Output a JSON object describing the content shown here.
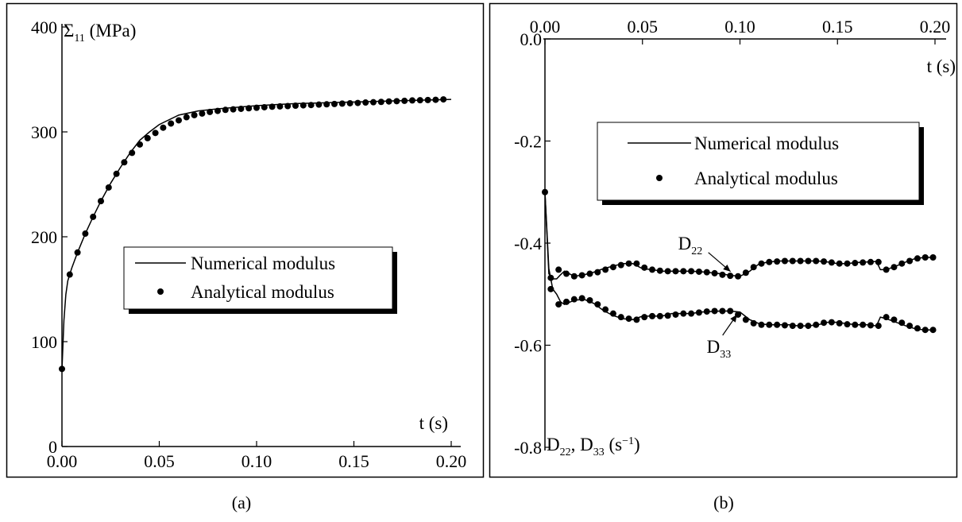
{
  "figure": {
    "captions": [
      "(a)",
      "(b)"
    ]
  },
  "chart_data": [
    {
      "type": "line",
      "panel": "(a)",
      "title": "",
      "xlabel": "t (s)",
      "ylabel": {
        "main": "Σ",
        "sub": "11",
        "rest": " (MPa)"
      },
      "xlim": [
        0,
        0.2
      ],
      "ylim": [
        0,
        400
      ],
      "xticks": [
        "0.00",
        "0.05",
        "0.10",
        "0.15",
        "0.20"
      ],
      "yticks": [
        "0",
        "100",
        "200",
        "300",
        "400"
      ],
      "grid": false,
      "legend": {
        "placement": "center-right",
        "entries": [
          "Numerical modulus",
          "Analytical modulus"
        ]
      },
      "series": [
        {
          "name": "Numerical modulus",
          "style": "line",
          "x": [
            0.0,
            0.001,
            0.002,
            0.003,
            0.005,
            0.008,
            0.012,
            0.016,
            0.02,
            0.025,
            0.03,
            0.035,
            0.04,
            0.045,
            0.05,
            0.06,
            0.07,
            0.08,
            0.09,
            0.1,
            0.11,
            0.12,
            0.13,
            0.14,
            0.15,
            0.16,
            0.17,
            0.18,
            0.19,
            0.2
          ],
          "y": [
            73,
            120,
            145,
            158,
            170,
            185,
            203,
            219,
            234,
            251,
            266,
            280,
            292,
            300,
            307,
            316,
            320,
            322,
            323.5,
            325,
            326,
            327,
            327.5,
            328,
            328.5,
            329,
            329.5,
            330,
            330.5,
            331
          ]
        },
        {
          "name": "Analytical modulus",
          "style": "markers",
          "x": [
            0.0,
            0.004,
            0.008,
            0.012,
            0.016,
            0.02,
            0.024,
            0.028,
            0.032,
            0.036,
            0.04,
            0.044,
            0.048,
            0.052,
            0.056,
            0.06,
            0.064,
            0.068,
            0.072,
            0.076,
            0.08,
            0.084,
            0.088,
            0.092,
            0.096,
            0.1,
            0.104,
            0.108,
            0.112,
            0.116,
            0.12,
            0.124,
            0.128,
            0.132,
            0.136,
            0.14,
            0.144,
            0.148,
            0.152,
            0.156,
            0.16,
            0.164,
            0.168,
            0.172,
            0.176,
            0.18,
            0.184,
            0.188,
            0.192,
            0.196
          ],
          "y": [
            74,
            164,
            185,
            203,
            219,
            234,
            247,
            260,
            271,
            280,
            288,
            294,
            299,
            304,
            308,
            311,
            314,
            316,
            317.5,
            319,
            320,
            321,
            321.5,
            322,
            322.5,
            323,
            323.5,
            324,
            324.3,
            324.6,
            325,
            325.3,
            325.6,
            326,
            326.3,
            326.6,
            327,
            327.3,
            327.6,
            328,
            328.3,
            328.6,
            329,
            329.3,
            329.6,
            330,
            330.2,
            330.4,
            330.6,
            331
          ]
        }
      ]
    },
    {
      "type": "line",
      "panel": "(b)",
      "title": "",
      "xlabel": "t (s)",
      "ylabel": {
        "parts": [
          {
            "t": "D",
            "sub": "22"
          },
          {
            "t": ", D",
            "sub": "33"
          },
          {
            "t": " (s",
            "sup": "−1"
          },
          {
            "t": ")"
          }
        ]
      },
      "xlim": [
        0,
        0.2
      ],
      "ylim": [
        -0.8,
        0.0
      ],
      "xticks": [
        "0.00",
        "0.05",
        "0.10",
        "0.15",
        "0.20"
      ],
      "yticks": [
        "-0.8",
        "-0.6",
        "-0.4",
        "-0.2",
        "0.0"
      ],
      "grid": false,
      "legend": {
        "placement": "top-center",
        "entries": [
          "Numerical modulus",
          "Analytical modulus"
        ]
      },
      "annotations": [
        {
          "main": "D",
          "sub": "22",
          "x": 0.096,
          "y": -0.462
        },
        {
          "main": "D",
          "sub": "33",
          "x": 0.096,
          "y": -0.537
        }
      ],
      "series": [
        {
          "name": "Numerical modulus",
          "style": "line",
          "group": "D22",
          "x": [
            0.0,
            0.002,
            0.004,
            0.006,
            0.008,
            0.01,
            0.015,
            0.02,
            0.025,
            0.03,
            0.035,
            0.04,
            0.045,
            0.05,
            0.055,
            0.06,
            0.065,
            0.07,
            0.075,
            0.08,
            0.085,
            0.09,
            0.095,
            0.1,
            0.105,
            0.11,
            0.115,
            0.12,
            0.125,
            0.13,
            0.135,
            0.14,
            0.145,
            0.15,
            0.155,
            0.16,
            0.165,
            0.17,
            0.172,
            0.175,
            0.18,
            0.185,
            0.19,
            0.195,
            0.2
          ],
          "y": [
            -0.3,
            -0.46,
            -0.47,
            -0.47,
            -0.462,
            -0.455,
            -0.465,
            -0.462,
            -0.457,
            -0.45,
            -0.445,
            -0.44,
            -0.44,
            -0.45,
            -0.452,
            -0.455,
            -0.455,
            -0.455,
            -0.455,
            -0.456,
            -0.458,
            -0.46,
            -0.463,
            -0.465,
            -0.455,
            -0.44,
            -0.437,
            -0.435,
            -0.435,
            -0.435,
            -0.435,
            -0.435,
            -0.437,
            -0.44,
            -0.44,
            -0.438,
            -0.437,
            -0.436,
            -0.452,
            -0.452,
            -0.445,
            -0.437,
            -0.43,
            -0.428,
            -0.428
          ]
        },
        {
          "name": "Numerical modulus",
          "style": "line",
          "group": "D33",
          "x": [
            0.0,
            0.002,
            0.004,
            0.006,
            0.008,
            0.01,
            0.015,
            0.02,
            0.025,
            0.03,
            0.035,
            0.04,
            0.045,
            0.05,
            0.055,
            0.06,
            0.065,
            0.07,
            0.075,
            0.08,
            0.085,
            0.09,
            0.095,
            0.1,
            0.105,
            0.11,
            0.115,
            0.12,
            0.125,
            0.13,
            0.135,
            0.14,
            0.145,
            0.15,
            0.155,
            0.16,
            0.165,
            0.17,
            0.172,
            0.175,
            0.18,
            0.185,
            0.19,
            0.195,
            0.2
          ],
          "y": [
            -0.3,
            -0.45,
            -0.49,
            -0.5,
            -0.515,
            -0.52,
            -0.512,
            -0.51,
            -0.518,
            -0.532,
            -0.542,
            -0.548,
            -0.55,
            -0.543,
            -0.543,
            -0.543,
            -0.538,
            -0.538,
            -0.538,
            -0.535,
            -0.534,
            -0.533,
            -0.533,
            -0.535,
            -0.55,
            -0.558,
            -0.56,
            -0.56,
            -0.56,
            -0.562,
            -0.562,
            -0.56,
            -0.555,
            -0.555,
            -0.558,
            -0.56,
            -0.56,
            -0.562,
            -0.545,
            -0.548,
            -0.555,
            -0.562,
            -0.568,
            -0.57,
            -0.57
          ]
        },
        {
          "name": "Analytical modulus",
          "style": "markers",
          "group": "D22",
          "x": [
            0.0,
            0.003,
            0.007,
            0.011,
            0.015,
            0.019,
            0.023,
            0.027,
            0.031,
            0.035,
            0.039,
            0.043,
            0.047,
            0.051,
            0.055,
            0.059,
            0.063,
            0.067,
            0.071,
            0.075,
            0.079,
            0.083,
            0.087,
            0.091,
            0.095,
            0.099,
            0.103,
            0.107,
            0.111,
            0.115,
            0.119,
            0.123,
            0.127,
            0.131,
            0.135,
            0.139,
            0.143,
            0.147,
            0.151,
            0.155,
            0.159,
            0.163,
            0.167,
            0.171,
            0.175,
            0.179,
            0.183,
            0.187,
            0.191,
            0.195,
            0.199
          ],
          "y": [
            -0.3,
            -0.468,
            -0.452,
            -0.46,
            -0.465,
            -0.463,
            -0.46,
            -0.457,
            -0.452,
            -0.447,
            -0.443,
            -0.44,
            -0.44,
            -0.448,
            -0.452,
            -0.454,
            -0.455,
            -0.455,
            -0.455,
            -0.455,
            -0.456,
            -0.457,
            -0.459,
            -0.462,
            -0.464,
            -0.465,
            -0.458,
            -0.447,
            -0.44,
            -0.437,
            -0.436,
            -0.435,
            -0.435,
            -0.435,
            -0.435,
            -0.435,
            -0.436,
            -0.438,
            -0.44,
            -0.44,
            -0.439,
            -0.438,
            -0.437,
            -0.437,
            -0.452,
            -0.447,
            -0.44,
            -0.435,
            -0.43,
            -0.428,
            -0.428
          ]
        },
        {
          "name": "Analytical modulus",
          "style": "markers",
          "group": "D33",
          "x": [
            0.003,
            0.007,
            0.011,
            0.015,
            0.019,
            0.023,
            0.027,
            0.031,
            0.035,
            0.039,
            0.043,
            0.047,
            0.051,
            0.055,
            0.059,
            0.063,
            0.067,
            0.071,
            0.075,
            0.079,
            0.083,
            0.087,
            0.091,
            0.095,
            0.099,
            0.103,
            0.107,
            0.111,
            0.115,
            0.119,
            0.123,
            0.127,
            0.131,
            0.135,
            0.139,
            0.143,
            0.147,
            0.151,
            0.155,
            0.159,
            0.163,
            0.167,
            0.171,
            0.175,
            0.179,
            0.183,
            0.187,
            0.191,
            0.195,
            0.199
          ],
          "y": [
            -0.49,
            -0.52,
            -0.515,
            -0.51,
            -0.508,
            -0.512,
            -0.52,
            -0.53,
            -0.538,
            -0.545,
            -0.548,
            -0.55,
            -0.545,
            -0.543,
            -0.543,
            -0.542,
            -0.54,
            -0.538,
            -0.538,
            -0.536,
            -0.534,
            -0.533,
            -0.533,
            -0.533,
            -0.54,
            -0.55,
            -0.557,
            -0.56,
            -0.56,
            -0.56,
            -0.561,
            -0.562,
            -0.562,
            -0.562,
            -0.56,
            -0.556,
            -0.555,
            -0.557,
            -0.559,
            -0.56,
            -0.56,
            -0.561,
            -0.562,
            -0.545,
            -0.55,
            -0.556,
            -0.562,
            -0.567,
            -0.57,
            -0.57
          ]
        }
      ]
    }
  ]
}
